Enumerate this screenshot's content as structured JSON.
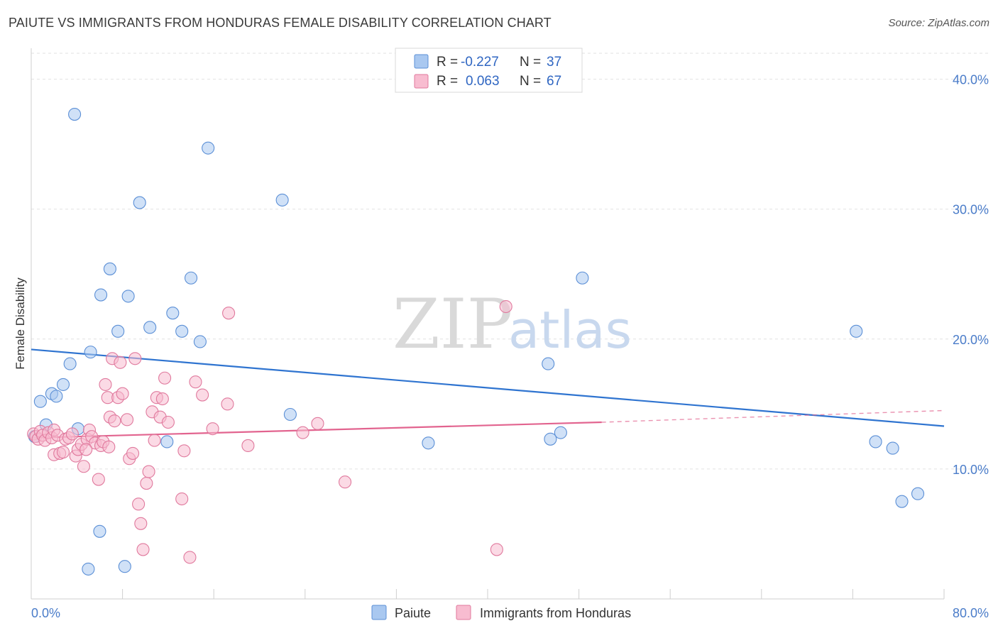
{
  "title": "PAIUTE VS IMMIGRANTS FROM HONDURAS FEMALE DISABILITY CORRELATION CHART",
  "source": "Source: ZipAtlas.com",
  "watermark": {
    "part1": "ZIP",
    "part2": "atlas"
  },
  "chart_data": {
    "type": "scatter",
    "title": "PAIUTE VS IMMIGRANTS FROM HONDURAS FEMALE DISABILITY CORRELATION CHART",
    "xlabel": "",
    "ylabel": "Female Disability",
    "xlim": [
      0,
      80
    ],
    "ylim": [
      0,
      42
    ],
    "x_tick_labels": [
      "0.0%",
      "80.0%"
    ],
    "y_ticks": [
      10,
      20,
      30,
      40
    ],
    "y_tick_labels": [
      "10.0%",
      "20.0%",
      "30.0%",
      "40.0%"
    ],
    "grid": true,
    "legend": {
      "placement": "top-center",
      "rows": [
        {
          "r_label": "R =",
          "r_value": "-0.227",
          "n_label": "N =",
          "n_value": "37"
        },
        {
          "r_label": "R =",
          "r_value": "0.063",
          "n_label": "N =",
          "n_value": "67"
        }
      ]
    },
    "series": [
      {
        "name": "Paiute",
        "color": "#a9c8f0",
        "edge": "#5b8fd6",
        "trend_color": "#2f74d0",
        "trend": {
          "x0": 0,
          "y0": 19.2,
          "x1": 80,
          "y1": 13.3
        },
        "points": [
          [
            3.8,
            37.3
          ],
          [
            15.5,
            34.7
          ],
          [
            9.5,
            30.5
          ],
          [
            22.0,
            30.7
          ],
          [
            6.9,
            25.4
          ],
          [
            14.0,
            24.7
          ],
          [
            6.1,
            23.4
          ],
          [
            8.5,
            23.3
          ],
          [
            12.4,
            22.0
          ],
          [
            10.4,
            20.9
          ],
          [
            7.6,
            20.6
          ],
          [
            13.2,
            20.6
          ],
          [
            14.8,
            19.8
          ],
          [
            5.2,
            19.0
          ],
          [
            3.4,
            18.1
          ],
          [
            2.8,
            16.5
          ],
          [
            1.8,
            15.8
          ],
          [
            2.2,
            15.6
          ],
          [
            0.8,
            15.2
          ],
          [
            1.3,
            13.4
          ],
          [
            4.1,
            13.1
          ],
          [
            0.3,
            12.5
          ],
          [
            11.9,
            12.1
          ],
          [
            22.7,
            14.2
          ],
          [
            34.8,
            12.0
          ],
          [
            45.5,
            12.3
          ],
          [
            46.4,
            12.8
          ],
          [
            48.3,
            24.7
          ],
          [
            45.3,
            18.1
          ],
          [
            72.3,
            20.6
          ],
          [
            74.0,
            12.1
          ],
          [
            75.5,
            11.6
          ],
          [
            76.3,
            7.5
          ],
          [
            77.7,
            8.1
          ],
          [
            6.0,
            5.2
          ],
          [
            5.0,
            2.3
          ],
          [
            8.2,
            2.5
          ]
        ]
      },
      {
        "name": "Immigrants from Honduras",
        "color": "#f8bcd0",
        "edge": "#e0799d",
        "trend_color": "#e2648f",
        "trend": {
          "x0": 0,
          "y0": 12.4,
          "x1": 50,
          "y1": 13.6
        },
        "trend_dashed": {
          "x0": 50,
          "y0": 13.6,
          "x1": 80,
          "y1": 14.5
        },
        "points": [
          [
            0.2,
            12.7
          ],
          [
            0.4,
            12.5
          ],
          [
            0.6,
            12.3
          ],
          [
            0.8,
            12.9
          ],
          [
            1.0,
            12.6
          ],
          [
            1.2,
            12.2
          ],
          [
            1.5,
            12.8
          ],
          [
            1.8,
            12.4
          ],
          [
            2.0,
            13.0
          ],
          [
            2.3,
            12.6
          ],
          [
            2.0,
            11.1
          ],
          [
            2.5,
            11.2
          ],
          [
            2.8,
            11.3
          ],
          [
            3.0,
            12.3
          ],
          [
            3.3,
            12.4
          ],
          [
            3.6,
            12.7
          ],
          [
            3.9,
            11.0
          ],
          [
            4.1,
            11.5
          ],
          [
            4.4,
            11.9
          ],
          [
            4.6,
            10.2
          ],
          [
            4.9,
            12.3
          ],
          [
            5.1,
            13.0
          ],
          [
            5.3,
            12.5
          ],
          [
            5.6,
            12.0
          ],
          [
            5.9,
            9.2
          ],
          [
            6.1,
            11.8
          ],
          [
            6.3,
            12.1
          ],
          [
            6.5,
            16.5
          ],
          [
            6.7,
            15.5
          ],
          [
            6.9,
            14.0
          ],
          [
            7.1,
            18.5
          ],
          [
            7.3,
            13.7
          ],
          [
            7.6,
            15.5
          ],
          [
            7.8,
            18.2
          ],
          [
            8.0,
            15.8
          ],
          [
            8.4,
            13.8
          ],
          [
            8.6,
            10.8
          ],
          [
            8.9,
            11.2
          ],
          [
            9.1,
            18.5
          ],
          [
            9.4,
            7.3
          ],
          [
            9.6,
            5.8
          ],
          [
            9.8,
            3.8
          ],
          [
            10.1,
            8.9
          ],
          [
            10.3,
            9.8
          ],
          [
            10.6,
            14.4
          ],
          [
            10.8,
            12.2
          ],
          [
            11.0,
            15.5
          ],
          [
            11.3,
            14.0
          ],
          [
            11.5,
            15.4
          ],
          [
            11.7,
            17.0
          ],
          [
            12.0,
            13.6
          ],
          [
            13.2,
            7.7
          ],
          [
            13.4,
            11.4
          ],
          [
            13.9,
            3.2
          ],
          [
            14.4,
            16.7
          ],
          [
            15.0,
            15.7
          ],
          [
            15.9,
            13.1
          ],
          [
            17.2,
            15.0
          ],
          [
            17.3,
            22.0
          ],
          [
            19.0,
            11.8
          ],
          [
            23.8,
            12.8
          ],
          [
            25.1,
            13.5
          ],
          [
            27.5,
            9.0
          ],
          [
            41.6,
            22.5
          ],
          [
            40.8,
            3.8
          ],
          [
            4.8,
            11.5
          ],
          [
            6.8,
            11.7
          ]
        ]
      }
    ]
  }
}
